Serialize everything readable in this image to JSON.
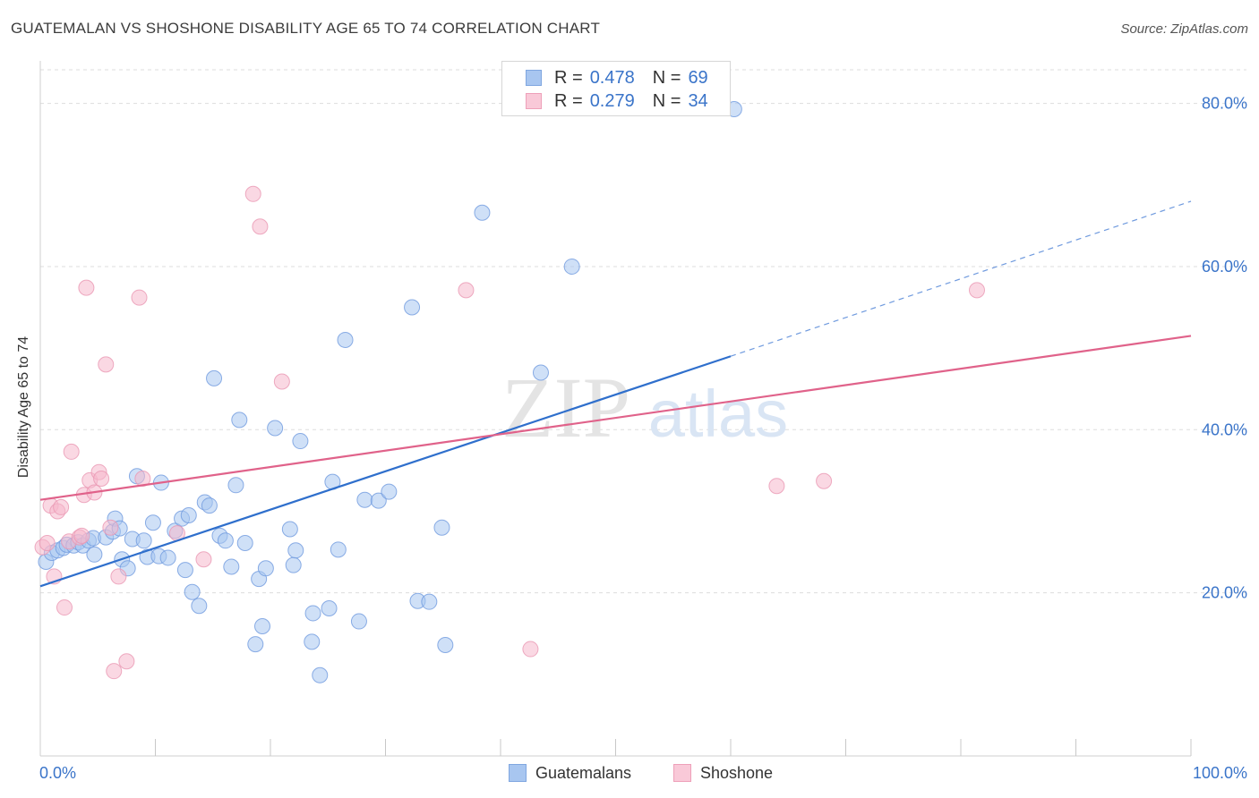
{
  "title": "GUATEMALAN VS SHOSHONE DISABILITY AGE 65 TO 74 CORRELATION CHART",
  "source": "Source: ZipAtlas.com",
  "watermark": "ZIPatlas",
  "legend": {
    "rows": [
      {
        "r_label": "R =",
        "r_value": "0.478",
        "n_label": "N =",
        "n_value": "69"
      },
      {
        "r_label": "R =",
        "r_value": "0.279",
        "n_label": "N =",
        "n_value": "34"
      }
    ],
    "bottom": [
      "Guatemalans",
      "Shoshone"
    ]
  },
  "colors": {
    "guatemalans_fill": "#a8c6f0",
    "guatemalans_line": "#2f6fcc",
    "shoshone_fill": "#f5b8cc",
    "shoshone_line": "#e0628a",
    "tick_label": "#3a74c9",
    "grid": "#dddddd"
  },
  "chart_data": {
    "type": "scatter",
    "title": "GUATEMALAN VS SHOSHONE DISABILITY AGE 65 TO 74 CORRELATION CHART",
    "xlabel": "",
    "ylabel": "Disability Age 65 to 74",
    "xlim": [
      0,
      100
    ],
    "ylim": [
      0,
      85
    ],
    "x_tick_labels": [
      "0.0%",
      "100.0%"
    ],
    "y_ticks": [
      20,
      40,
      60,
      80
    ],
    "y_tick_labels": [
      "20.0%",
      "40.0%",
      "60.0%",
      "80.0%"
    ],
    "grid": true,
    "series": [
      {
        "name": "Guatemalans",
        "r": 0.478,
        "n": 69,
        "trend": {
          "x0": 0,
          "y0": 20.8,
          "x1": 60,
          "y1": 49.0,
          "dash_to_x": 100,
          "dash_to_y": 68.0
        },
        "points": [
          [
            0.5,
            23.8
          ],
          [
            1.0,
            24.9
          ],
          [
            1.5,
            25.2
          ],
          [
            2.0,
            25.5
          ],
          [
            2.3,
            25.9
          ],
          [
            2.9,
            25.8
          ],
          [
            3.3,
            26.2
          ],
          [
            3.7,
            25.8
          ],
          [
            4.2,
            26.4
          ],
          [
            4.6,
            26.7
          ],
          [
            4.7,
            24.7
          ],
          [
            5.7,
            26.8
          ],
          [
            6.3,
            27.5
          ],
          [
            6.5,
            29.1
          ],
          [
            6.9,
            27.9
          ],
          [
            7.1,
            24.1
          ],
          [
            7.6,
            23.0
          ],
          [
            8.0,
            26.6
          ],
          [
            8.4,
            34.3
          ],
          [
            9.0,
            26.4
          ],
          [
            9.3,
            24.4
          ],
          [
            9.8,
            28.6
          ],
          [
            10.3,
            24.5
          ],
          [
            10.5,
            33.5
          ],
          [
            11.1,
            24.3
          ],
          [
            11.7,
            27.6
          ],
          [
            12.3,
            29.1
          ],
          [
            12.6,
            22.8
          ],
          [
            12.9,
            29.5
          ],
          [
            13.2,
            20.1
          ],
          [
            13.8,
            18.4
          ],
          [
            14.3,
            31.1
          ],
          [
            14.7,
            30.7
          ],
          [
            15.1,
            46.3
          ],
          [
            15.6,
            27.0
          ],
          [
            16.1,
            26.4
          ],
          [
            16.6,
            23.2
          ],
          [
            17.0,
            33.2
          ],
          [
            17.3,
            41.2
          ],
          [
            17.8,
            26.1
          ],
          [
            18.7,
            13.7
          ],
          [
            19.0,
            21.7
          ],
          [
            19.3,
            15.9
          ],
          [
            19.6,
            23.0
          ],
          [
            20.4,
            40.2
          ],
          [
            21.7,
            27.8
          ],
          [
            22.0,
            23.4
          ],
          [
            22.2,
            25.2
          ],
          [
            22.6,
            38.6
          ],
          [
            23.6,
            14.0
          ],
          [
            23.7,
            17.5
          ],
          [
            24.3,
            9.9
          ],
          [
            25.1,
            18.1
          ],
          [
            25.4,
            33.6
          ],
          [
            25.9,
            25.3
          ],
          [
            26.5,
            51.0
          ],
          [
            27.7,
            16.5
          ],
          [
            28.2,
            31.4
          ],
          [
            29.4,
            31.3
          ],
          [
            30.3,
            32.4
          ],
          [
            32.3,
            55.0
          ],
          [
            32.8,
            19.0
          ],
          [
            33.8,
            18.9
          ],
          [
            34.9,
            28.0
          ],
          [
            35.2,
            13.6
          ],
          [
            38.4,
            66.6
          ],
          [
            43.5,
            47.0
          ],
          [
            46.2,
            60.0
          ],
          [
            60.3,
            79.3
          ]
        ]
      },
      {
        "name": "Shoshone",
        "r": 0.279,
        "n": 34,
        "trend": {
          "x0": 0,
          "y0": 31.4,
          "x1": 100,
          "y1": 51.5
        },
        "points": [
          [
            0.2,
            25.6
          ],
          [
            0.6,
            26.1
          ],
          [
            0.9,
            30.7
          ],
          [
            1.2,
            22.0
          ],
          [
            1.5,
            30.0
          ],
          [
            1.8,
            30.5
          ],
          [
            2.1,
            18.2
          ],
          [
            2.5,
            26.3
          ],
          [
            2.7,
            37.3
          ],
          [
            3.4,
            26.8
          ],
          [
            3.6,
            27.0
          ],
          [
            3.8,
            32.0
          ],
          [
            4.0,
            57.4
          ],
          [
            4.3,
            33.8
          ],
          [
            4.7,
            32.3
          ],
          [
            5.1,
            34.8
          ],
          [
            5.3,
            34.0
          ],
          [
            5.7,
            48.0
          ],
          [
            6.1,
            28.0
          ],
          [
            6.4,
            10.4
          ],
          [
            6.8,
            22.0
          ],
          [
            7.5,
            11.6
          ],
          [
            8.6,
            56.2
          ],
          [
            8.9,
            34.0
          ],
          [
            11.9,
            27.3
          ],
          [
            14.2,
            24.1
          ],
          [
            18.5,
            68.9
          ],
          [
            19.1,
            64.9
          ],
          [
            21.0,
            45.9
          ],
          [
            37.0,
            57.1
          ],
          [
            42.6,
            13.1
          ],
          [
            64.0,
            33.1
          ],
          [
            68.1,
            33.7
          ],
          [
            81.4,
            57.1
          ]
        ]
      }
    ]
  }
}
